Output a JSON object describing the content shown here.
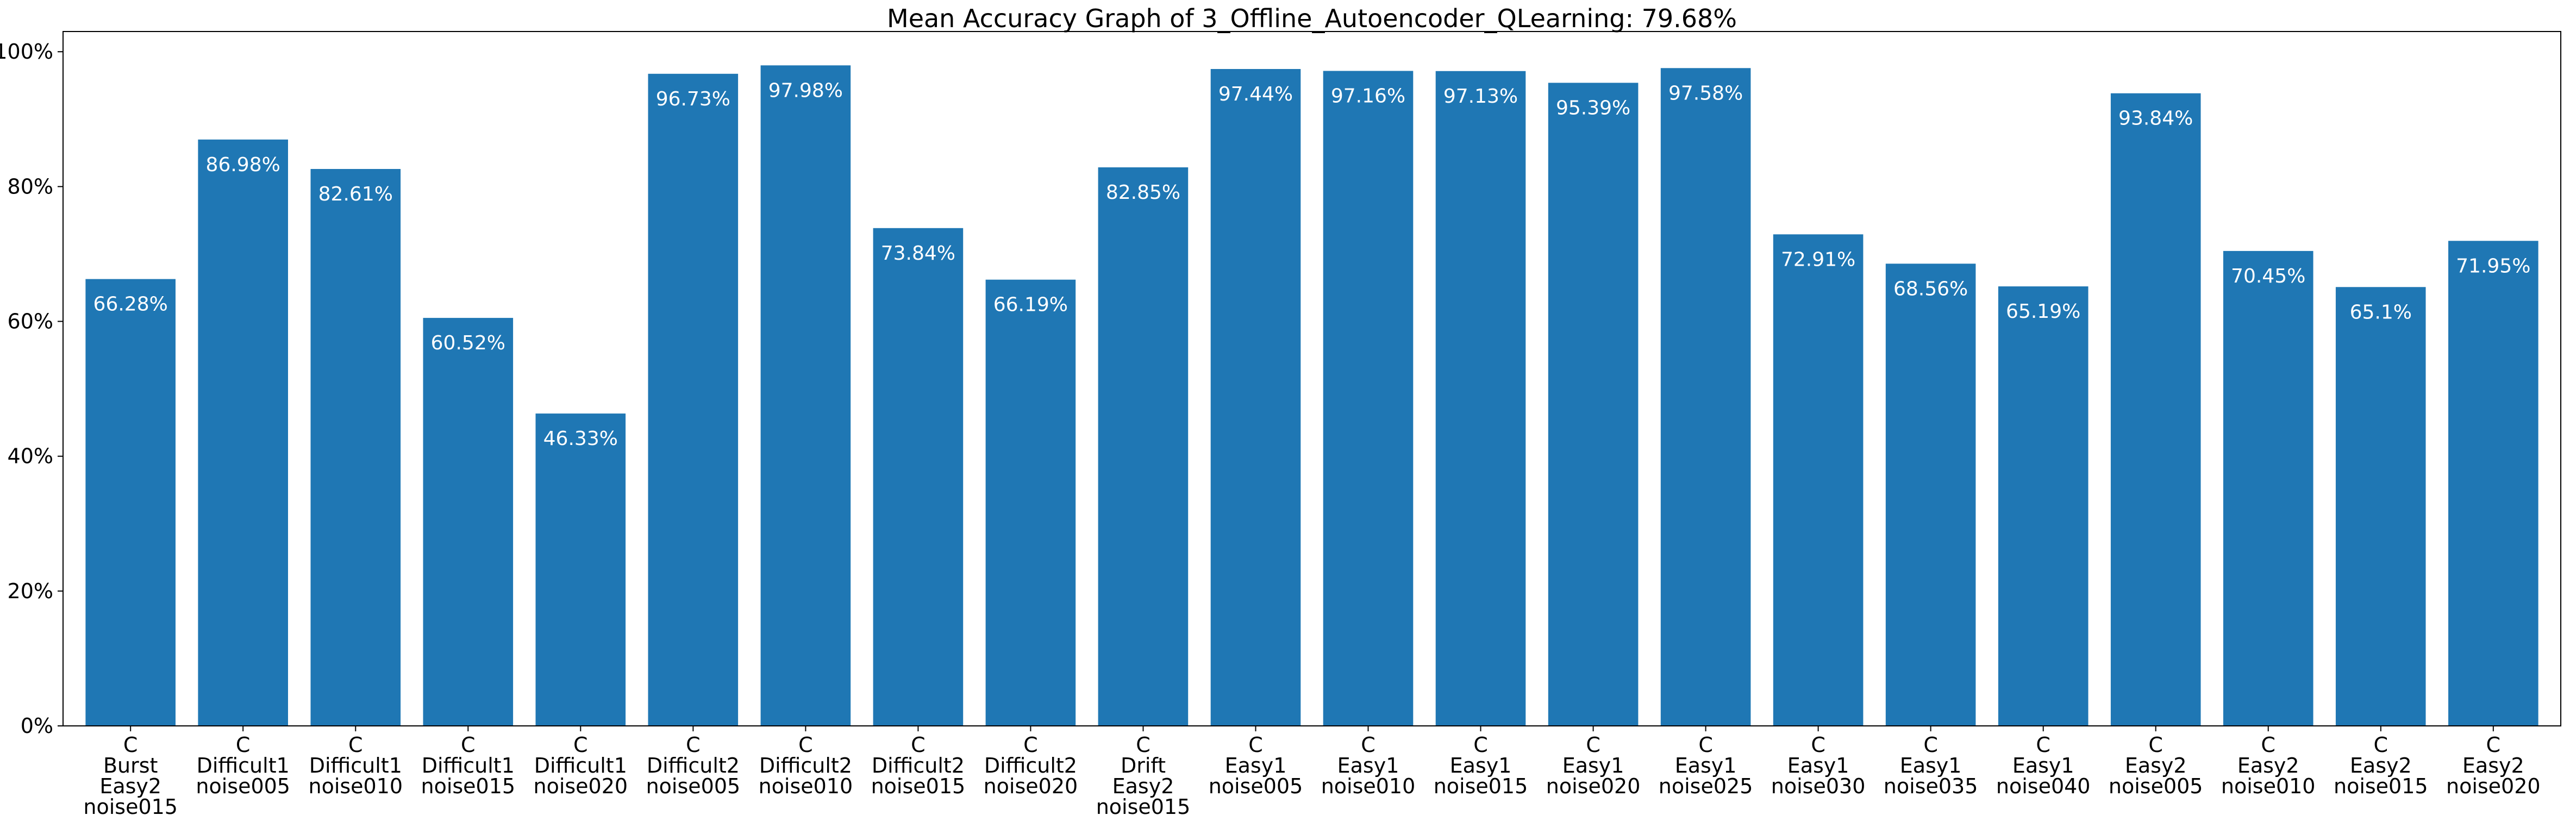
{
  "chart_data": {
    "type": "bar",
    "title": "Mean Accuracy Graph of 3_Offline_Autoencoder_QLearning: 79.68%",
    "xlabel": "",
    "ylabel": "",
    "ylim": [
      0,
      1.03
    ],
    "y_ticks": [
      0,
      0.2,
      0.4,
      0.6,
      0.8,
      1.0
    ],
    "y_tick_labels": [
      "0%",
      "20%",
      "40%",
      "60%",
      "80%",
      "100%"
    ],
    "grid": false,
    "bar_color": "#1f77b4",
    "data_label_color": "#ffffff",
    "categories": [
      [
        "C",
        "Burst",
        "Easy2",
        "noise015"
      ],
      [
        "C",
        "Difficult1",
        "noise005"
      ],
      [
        "C",
        "Difficult1",
        "noise010"
      ],
      [
        "C",
        "Difficult1",
        "noise015"
      ],
      [
        "C",
        "Difficult1",
        "noise020"
      ],
      [
        "C",
        "Difficult2",
        "noise005"
      ],
      [
        "C",
        "Difficult2",
        "noise010"
      ],
      [
        "C",
        "Difficult2",
        "noise015"
      ],
      [
        "C",
        "Difficult2",
        "noise020"
      ],
      [
        "C",
        "Drift",
        "Easy2",
        "noise015"
      ],
      [
        "C",
        "Easy1",
        "noise005"
      ],
      [
        "C",
        "Easy1",
        "noise010"
      ],
      [
        "C",
        "Easy1",
        "noise015"
      ],
      [
        "C",
        "Easy1",
        "noise020"
      ],
      [
        "C",
        "Easy1",
        "noise025"
      ],
      [
        "C",
        "Easy1",
        "noise030"
      ],
      [
        "C",
        "Easy1",
        "noise035"
      ],
      [
        "C",
        "Easy1",
        "noise040"
      ],
      [
        "C",
        "Easy2",
        "noise005"
      ],
      [
        "C",
        "Easy2",
        "noise010"
      ],
      [
        "C",
        "Easy2",
        "noise015"
      ],
      [
        "C",
        "Easy2",
        "noise020"
      ]
    ],
    "values": [
      0.6628,
      0.8698,
      0.8261,
      0.6052,
      0.4633,
      0.9673,
      0.9798,
      0.7384,
      0.6619,
      0.8285,
      0.9744,
      0.9716,
      0.9713,
      0.9539,
      0.9758,
      0.7291,
      0.6856,
      0.6519,
      0.9384,
      0.7045,
      0.651,
      0.7195
    ],
    "data_labels": [
      "66.28%",
      "86.98%",
      "82.61%",
      "60.52%",
      "46.33%",
      "96.73%",
      "97.98%",
      "73.84%",
      "66.19%",
      "82.85%",
      "97.44%",
      "97.16%",
      "97.13%",
      "95.39%",
      "97.58%",
      "72.91%",
      "68.56%",
      "65.19%",
      "93.84%",
      "70.45%",
      "65.1%",
      "71.95%"
    ]
  }
}
